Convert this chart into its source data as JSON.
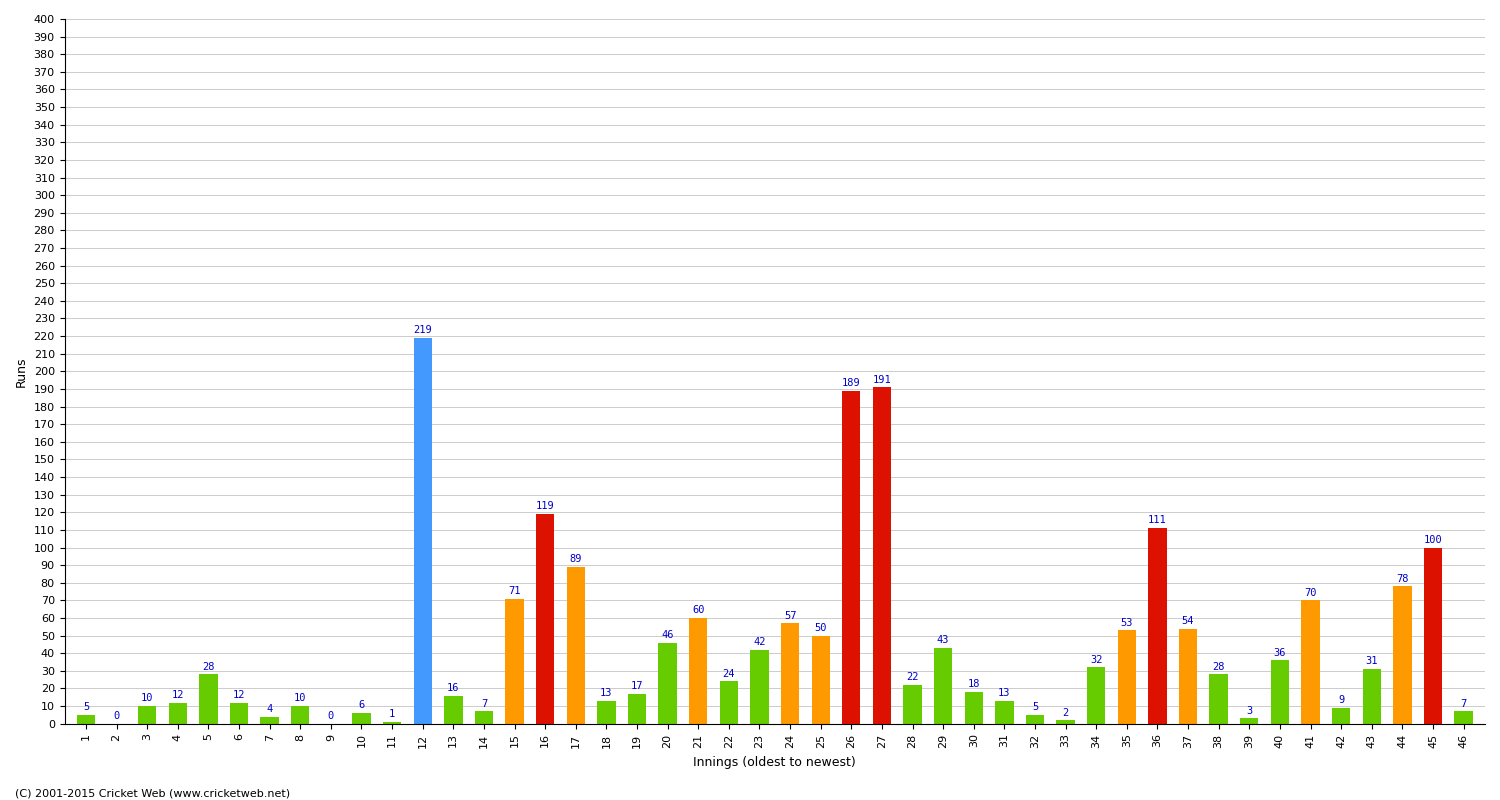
{
  "innings": [
    1,
    2,
    3,
    4,
    5,
    6,
    7,
    8,
    9,
    10,
    11,
    12,
    13,
    14,
    15,
    16,
    17,
    18,
    19,
    20,
    21,
    22,
    23,
    24,
    25,
    26,
    27,
    28,
    29,
    30,
    31,
    32,
    33,
    34,
    35,
    36,
    37,
    38,
    39,
    40,
    41,
    42,
    43,
    44,
    45,
    46
  ],
  "scores": [
    5,
    0,
    10,
    12,
    28,
    12,
    4,
    10,
    0,
    6,
    1,
    219,
    16,
    7,
    71,
    119,
    89,
    13,
    17,
    46,
    60,
    24,
    42,
    57,
    50,
    189,
    191,
    22,
    43,
    18,
    13,
    5,
    2,
    32,
    53,
    111,
    54,
    28,
    3,
    36,
    70,
    9,
    31,
    78,
    100,
    7
  ],
  "colors": [
    "#66cc00",
    "#66cc00",
    "#66cc00",
    "#66cc00",
    "#66cc00",
    "#66cc00",
    "#66cc00",
    "#66cc00",
    "#66cc00",
    "#66cc00",
    "#66cc00",
    "#4499ff",
    "#66cc00",
    "#66cc00",
    "#ff9900",
    "#dd1100",
    "#ff9900",
    "#66cc00",
    "#66cc00",
    "#66cc00",
    "#ff9900",
    "#66cc00",
    "#66cc00",
    "#ff9900",
    "#ff9900",
    "#dd1100",
    "#dd1100",
    "#66cc00",
    "#66cc00",
    "#66cc00",
    "#66cc00",
    "#66cc00",
    "#66cc00",
    "#66cc00",
    "#ff9900",
    "#dd1100",
    "#ff9900",
    "#66cc00",
    "#66cc00",
    "#66cc00",
    "#ff9900",
    "#66cc00",
    "#66cc00",
    "#ff9900",
    "#dd1100",
    "#66cc00"
  ],
  "ylabel": "Runs",
  "xlabel": "Innings (oldest to newest)",
  "ylim": [
    0,
    400
  ],
  "yticks": [
    0,
    10,
    20,
    30,
    40,
    50,
    60,
    70,
    80,
    90,
    100,
    110,
    120,
    130,
    140,
    150,
    160,
    170,
    180,
    190,
    200,
    210,
    220,
    230,
    240,
    250,
    260,
    270,
    280,
    290,
    300,
    310,
    320,
    330,
    340,
    350,
    360,
    370,
    380,
    390,
    400
  ],
  "footer": "(C) 2001-2015 Cricket Web (www.cricketweb.net)",
  "bg_color": "#ffffff",
  "grid_color": "#cccccc",
  "label_color": "#0000cc",
  "label_fontsize": 7.5,
  "bar_width": 0.6
}
